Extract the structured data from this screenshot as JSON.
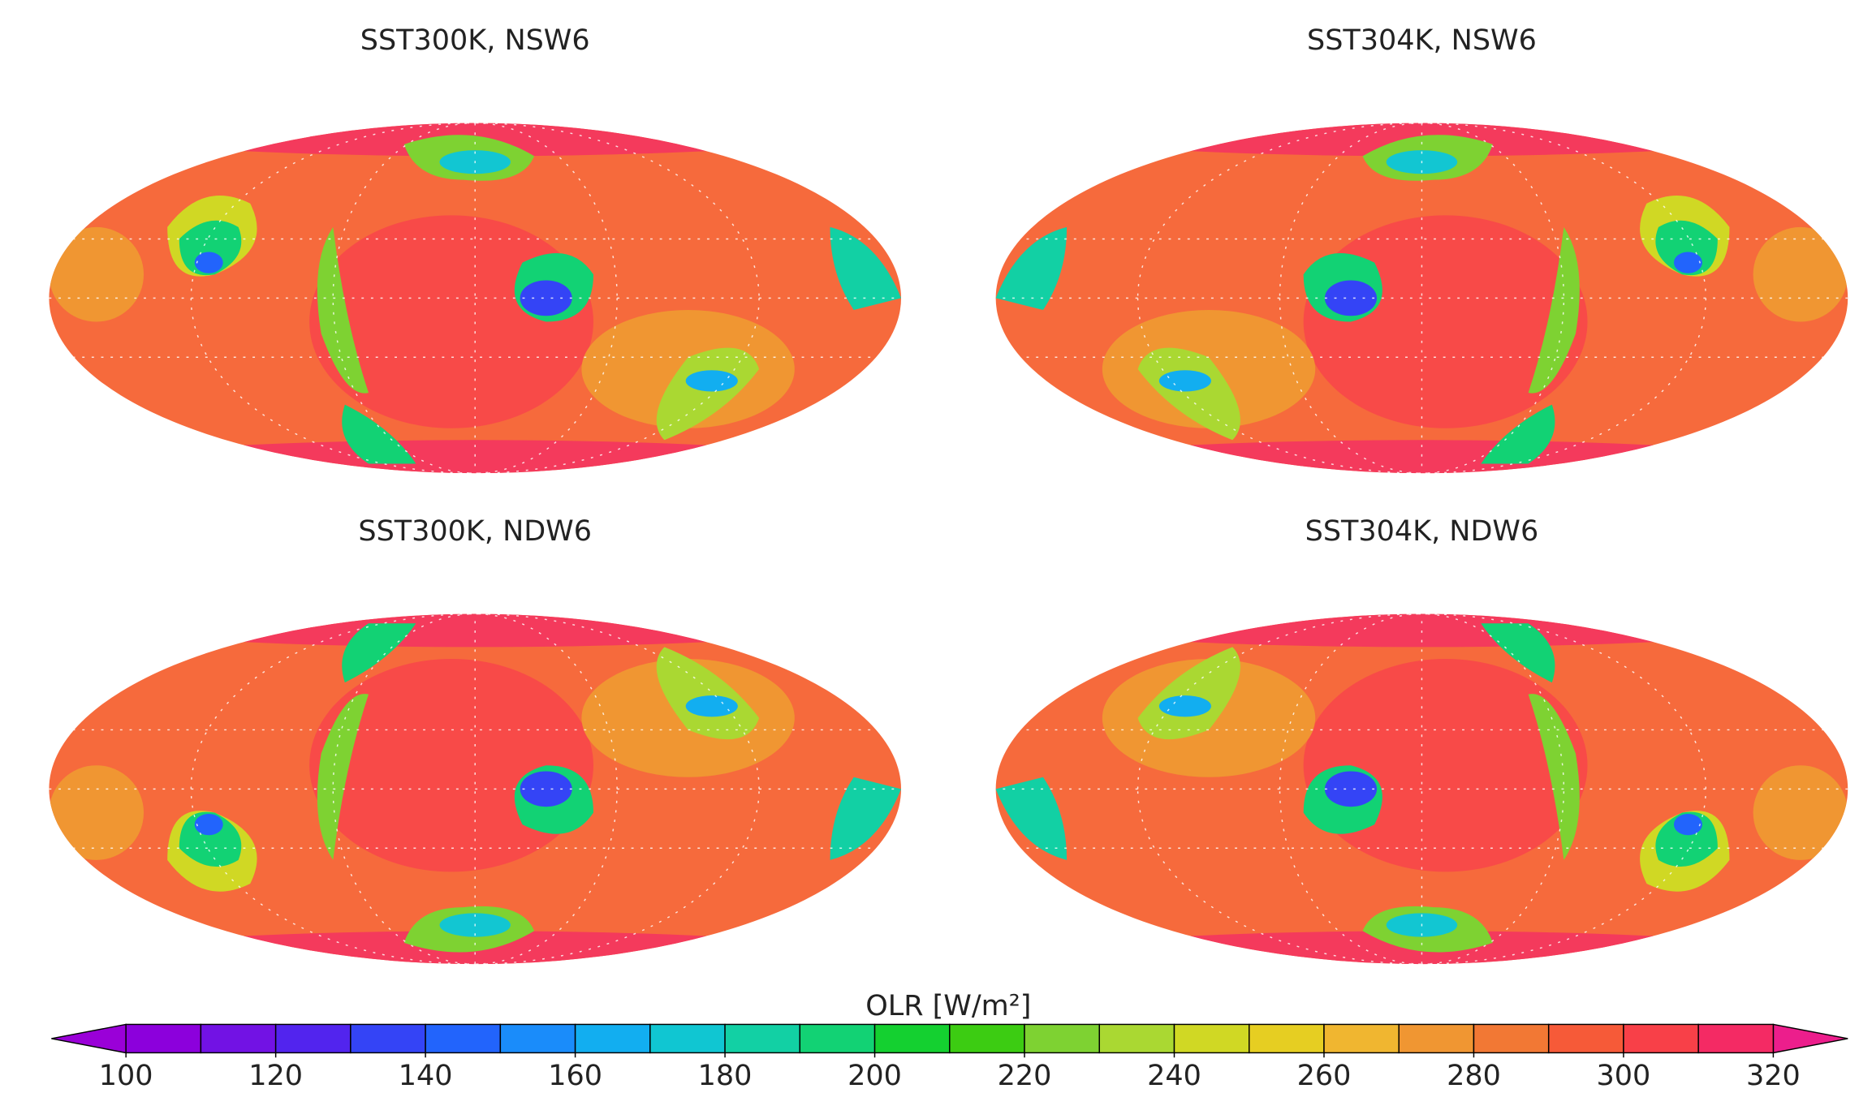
{
  "panels": [
    {
      "title": "SST300K, NSW6"
    },
    {
      "title": "SST304K, NSW6"
    },
    {
      "title": "SST300K, NDW6"
    },
    {
      "title": "SST304K, NDW6"
    }
  ],
  "colorbar": {
    "label": "OLR [W/m²]",
    "levels": [
      100,
      110,
      120,
      130,
      140,
      150,
      160,
      170,
      180,
      190,
      200,
      210,
      220,
      230,
      240,
      250,
      260,
      270,
      280,
      290,
      300,
      310,
      320
    ],
    "colors": [
      "#8c00dc",
      "#7212e4",
      "#5224ee",
      "#3444f6",
      "#2264fc",
      "#1a8cfa",
      "#12aef0",
      "#10c6d2",
      "#12d0a4",
      "#12d274",
      "#14d030",
      "#3ccc12",
      "#7ed232",
      "#aad832",
      "#d0d824",
      "#e6ce22",
      "#f0b630",
      "#f09632",
      "#f27834",
      "#f65a38",
      "#f84048",
      "#f42a64"
    ],
    "under": "#9a00d8",
    "over": "#ec1e8c",
    "ticks": [
      100,
      120,
      140,
      160,
      180,
      200,
      220,
      240,
      260,
      280,
      300,
      320
    ]
  }
}
